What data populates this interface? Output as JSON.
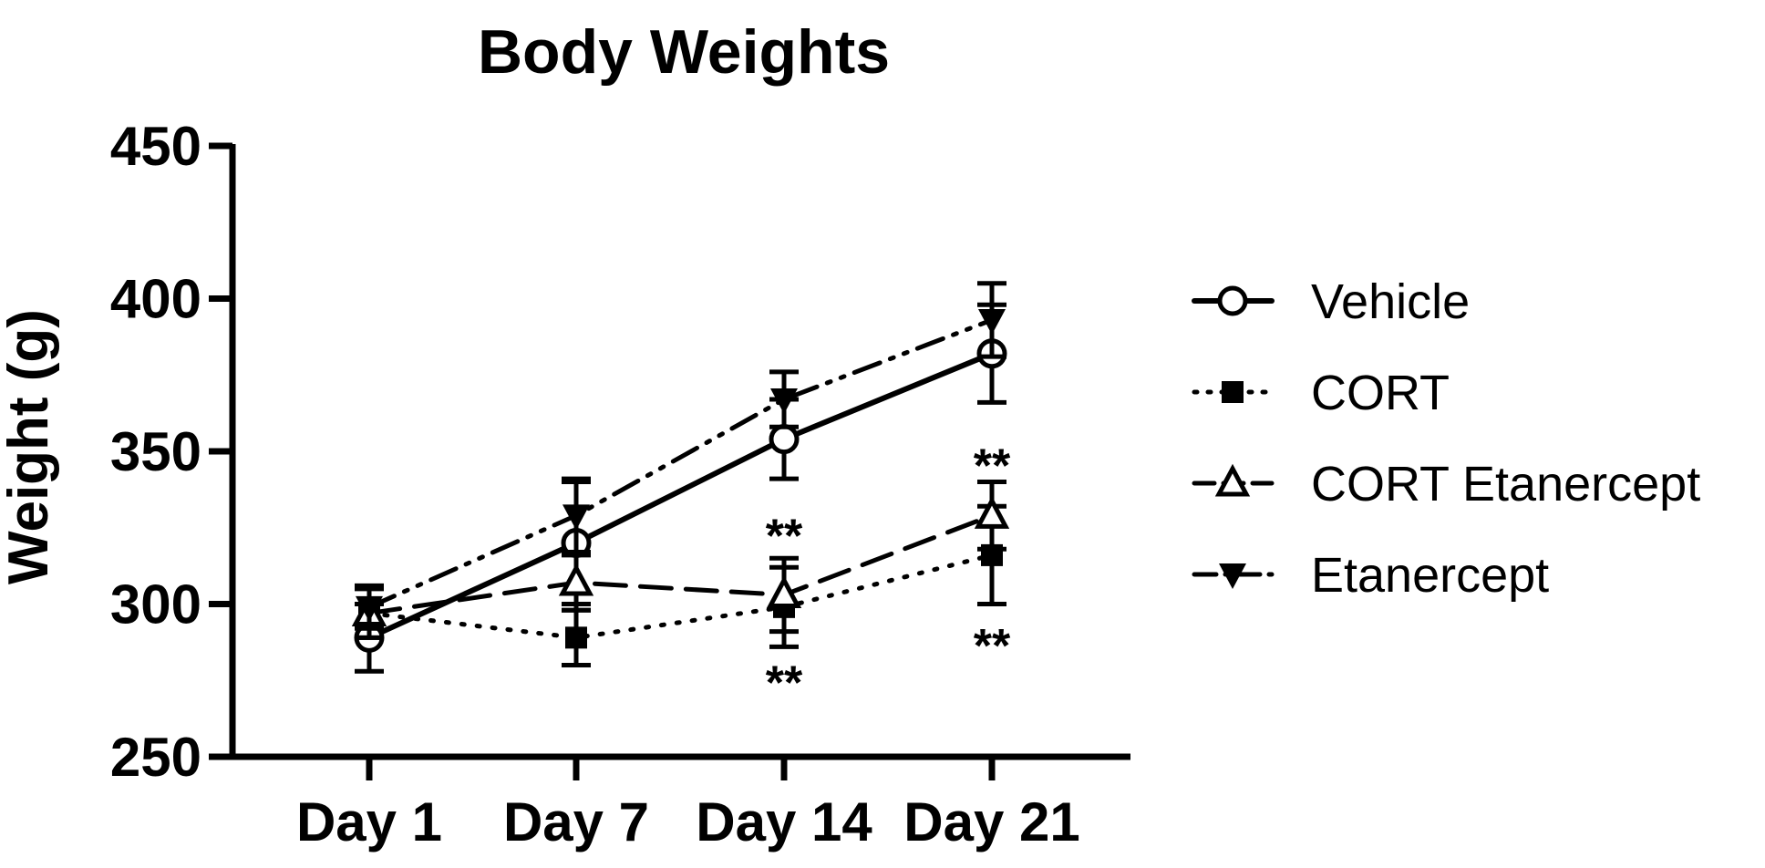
{
  "chart_data": {
    "type": "line",
    "title": "Body Weights",
    "xlabel": "",
    "ylabel": "Weight (g)",
    "categories": [
      "Day 1",
      "Day 7",
      "Day 14",
      "Day 21"
    ],
    "ylim": [
      250,
      450
    ],
    "yticks": [
      "250",
      "300",
      "350",
      "400",
      "450"
    ],
    "grid": false,
    "legend_position": "right",
    "series": [
      {
        "name": "Vehicle",
        "marker": "open-circle",
        "line": "solid",
        "values": [
          289,
          320,
          354,
          382
        ],
        "errors": [
          11,
          20,
          13,
          16
        ]
      },
      {
        "name": "CORT",
        "marker": "filled-square",
        "line": "dotted",
        "values": [
          297,
          289,
          299,
          316
        ],
        "errors": [
          8,
          9,
          13,
          16
        ]
      },
      {
        "name": "CORT Etanercept",
        "marker": "open-triangle-up",
        "line": "dashed",
        "values": [
          297,
          307,
          303,
          329
        ],
        "errors": [
          8,
          9,
          12,
          11
        ]
      },
      {
        "name": "Etanercept",
        "marker": "filled-triangle-down",
        "line": "dash-dot-dot",
        "values": [
          299,
          329,
          367,
          393
        ],
        "errors": [
          7,
          12,
          9,
          12
        ]
      }
    ],
    "annotations": [
      {
        "text": "**",
        "category": "Day 14",
        "y": 323
      },
      {
        "text": "**",
        "category": "Day 14",
        "y": 275
      },
      {
        "text": "**",
        "category": "Day 21",
        "y": 346
      },
      {
        "text": "**",
        "category": "Day 21",
        "y": 287
      }
    ]
  }
}
